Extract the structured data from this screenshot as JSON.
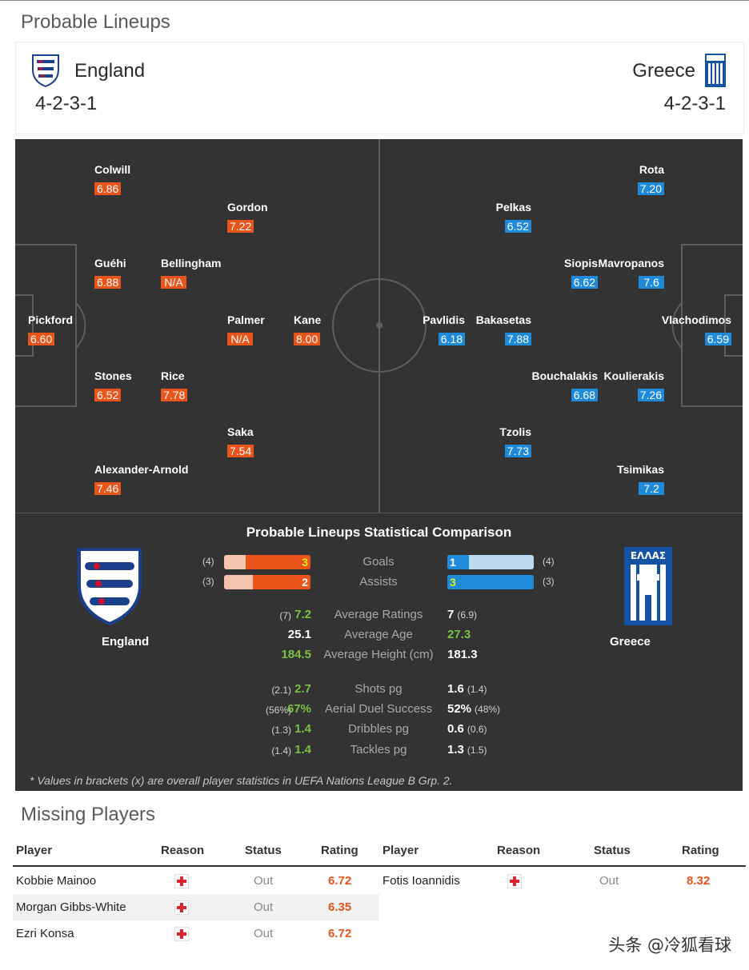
{
  "lineups_title": "Probable Lineups",
  "home": {
    "name": "England",
    "formation": "4-2-3-1",
    "logo_icon": "england-three-lions-crest-icon"
  },
  "away": {
    "name": "Greece",
    "formation": "4-2-3-1",
    "logo_icon": "greece-ellas-crest-icon",
    "crest_text": "ΕΛΛΑΣ"
  },
  "colors": {
    "home_rating": "#e8541a",
    "away_rating": "#1f8ad9",
    "pitch": "#333333",
    "better": "#7ac143"
  },
  "pitch": {
    "home_players": [
      {
        "name": "Pickford",
        "rating": "6.60"
      },
      {
        "name": "Colwill",
        "rating": "6.86"
      },
      {
        "name": "Guéhi",
        "rating": "6.88"
      },
      {
        "name": "Stones",
        "rating": "6.52"
      },
      {
        "name": "Alexander-Arnold",
        "rating": "7.46"
      },
      {
        "name": "Bellingham",
        "rating": "N/A"
      },
      {
        "name": "Rice",
        "rating": "7.78"
      },
      {
        "name": "Gordon",
        "rating": "7.22"
      },
      {
        "name": "Palmer",
        "rating": "N/A"
      },
      {
        "name": "Saka",
        "rating": "7.54"
      },
      {
        "name": "Kane",
        "rating": "8.00"
      }
    ],
    "away_players": [
      {
        "name": "Vlachodimos",
        "rating": "6.59"
      },
      {
        "name": "Rota",
        "rating": "7.20"
      },
      {
        "name": "Mavropanos",
        "rating": "7.6"
      },
      {
        "name": "Koulierakis",
        "rating": "7.26"
      },
      {
        "name": "Tsimikas",
        "rating": "7.2"
      },
      {
        "name": "Siopis",
        "rating": "6.62"
      },
      {
        "name": "Bouchalakis",
        "rating": "6.68"
      },
      {
        "name": "Pelkas",
        "rating": "6.52"
      },
      {
        "name": "Bakasetas",
        "rating": "7.88"
      },
      {
        "name": "Tzolis",
        "rating": "7.73"
      },
      {
        "name": "Pavlidis",
        "rating": "6.18"
      }
    ]
  },
  "comparison": {
    "title": "Probable Lineups Statistical Comparison",
    "home_team": "England",
    "away_team": "Greece",
    "bars": [
      {
        "label": "Goals",
        "home": "3",
        "home_paren": "(4)",
        "away": "1",
        "away_paren": "(4)",
        "home_fill": 0.75,
        "away_fill": 0.25
      },
      {
        "label": "Assists",
        "home": "2",
        "home_paren": "(3)",
        "away": "3",
        "away_paren": "(3)",
        "home_fill": 0.667,
        "away_fill": 1.0
      }
    ],
    "rows": [
      {
        "label": "Average Ratings",
        "home_paren": "(7)",
        "home": "7.2",
        "away": "7",
        "away_paren": "(6.9)",
        "better": "home"
      },
      {
        "label": "Average Age",
        "home_paren": "",
        "home": "25.1",
        "away": "27.3",
        "away_paren": "",
        "better": "away"
      },
      {
        "label": "Average Height (cm)",
        "home_paren": "",
        "home": "184.5",
        "away": "181.3",
        "away_paren": "",
        "better": "home"
      }
    ],
    "rows2": [
      {
        "label": "Shots pg",
        "home_paren": "(2.1)",
        "home": "2.7",
        "away": "1.6",
        "away_paren": "(1.4)",
        "better": "home"
      },
      {
        "label": "Aerial Duel Success",
        "home_paren": "(56%)",
        "home": "67%",
        "away": "52%",
        "away_paren": "(48%)",
        "better": "home"
      },
      {
        "label": "Dribbles pg",
        "home_paren": "(1.3)",
        "home": "1.4",
        "away": "0.6",
        "away_paren": "(0.6)",
        "better": "home"
      },
      {
        "label": "Tackles pg",
        "home_paren": "(1.4)",
        "home": "1.4",
        "away": "1.3",
        "away_paren": "(1.5)",
        "better": "home"
      }
    ],
    "note": "* Values in brackets (x) are overall player statistics in UEFA Nations League B Grp. 2."
  },
  "missing": {
    "title": "Missing Players",
    "headers": {
      "player": "Player",
      "reason": "Reason",
      "status": "Status",
      "rating": "Rating"
    },
    "reason_icon": "injury-cross-icon",
    "home": [
      {
        "player": "Kobbie Mainoo",
        "status": "Out",
        "rating": "6.72"
      },
      {
        "player": "Morgan Gibbs-White",
        "status": "Out",
        "rating": "6.35"
      },
      {
        "player": "Ezri Konsa",
        "status": "Out",
        "rating": "6.72"
      }
    ],
    "away": [
      {
        "player": "Fotis Ioannidis",
        "status": "Out",
        "rating": "8.32"
      }
    ]
  },
  "watermark": "头条 @冷狐看球"
}
